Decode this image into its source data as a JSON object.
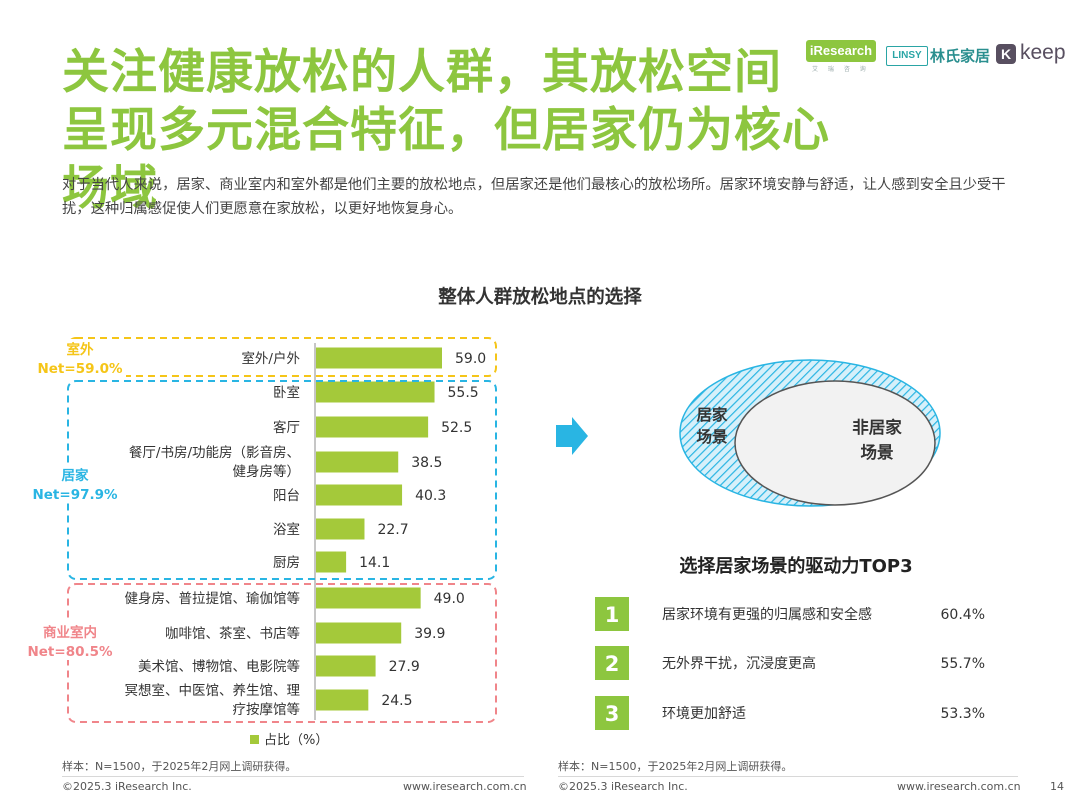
{
  "title": {
    "line1": "关注健康放松的人群，其放松空间",
    "line2": "呈现多元混合特征，但居家仍为核心场域"
  },
  "logos": {
    "iresearch": "iResearch",
    "iresearch_sub": "艾 瑞 咨 询",
    "linsy": "LINSY",
    "linshi": "林氏家居",
    "keep_k": "K",
    "keep": "keep"
  },
  "description": "对于当代人来说，居家、商业室内和室外都是他们主要的放松地点，但居家还是他们最核心的放松场所。居家环境安静与舒适，让人感到安全且少受干扰，这种归属感促使人们更愿意在家放松，以更好地恢复身心。",
  "chart_data": {
    "type": "bar",
    "orientation": "horizontal",
    "title": "整体人群放松地点的选择",
    "legend": "占比（%）",
    "categories": [
      "室外/户外",
      "卧室",
      "客厅",
      "餐厅/书房/功能房（影音房、健身房等）",
      "阳台",
      "浴室",
      "厨房",
      "健身房、普拉提馆、瑜伽馆等",
      "咖啡馆、茶室、书店等",
      "美术馆、博物馆、电影院等",
      "冥想室、中医馆、养生馆、理疗按摩馆等"
    ],
    "category_lines": [
      [
        "室外/户外"
      ],
      [
        "卧室"
      ],
      [
        "客厅"
      ],
      [
        "餐厅/书房/功能房（影音房、",
        "健身房等）"
      ],
      [
        "阳台"
      ],
      [
        "浴室"
      ],
      [
        "厨房"
      ],
      [
        "健身房、普拉提馆、瑜伽馆等"
      ],
      [
        "咖啡馆、茶室、书店等"
      ],
      [
        "美术馆、博物馆、电影院等"
      ],
      [
        "冥想室、中医馆、养生馆、理",
        "疗按摩馆等"
      ]
    ],
    "values": [
      59.0,
      55.5,
      52.5,
      38.5,
      40.3,
      22.7,
      14.1,
      49.0,
      39.9,
      27.9,
      24.5
    ],
    "value_labels": [
      "59.0",
      "55.5",
      "52.5",
      "38.5",
      "40.3",
      "22.7",
      "14.1",
      "49.0",
      "39.9",
      "27.9",
      "24.5"
    ],
    "bar_color": "#a4c93a",
    "groups": [
      {
        "name": "室外",
        "net": "Net=59.0%",
        "color": "#f5c518",
        "first": 0,
        "last": 0
      },
      {
        "name": "居家",
        "net": "Net=97.9%",
        "color": "#29b5e3",
        "first": 1,
        "last": 6
      },
      {
        "name": "商业室内",
        "net": "Net=80.5%",
        "color": "#f0858a",
        "first": 7,
        "last": 10
      }
    ]
  },
  "venn": {
    "home_label": [
      "居家",
      "场景"
    ],
    "nonhome_label": [
      "非居家",
      "场景"
    ],
    "home_color": "#29b5e3"
  },
  "top3": {
    "title": "选择居家场景的驱动力TOP3",
    "badge_color": "#8dc63f",
    "items": [
      {
        "rank": "1",
        "text": "居家环境有更强的归属感和安全感",
        "value": "60.4%"
      },
      {
        "rank": "2",
        "text": "无外界干扰，沉浸度更高",
        "value": "55.7%"
      },
      {
        "rank": "3",
        "text": "环境更加舒适",
        "value": "53.3%"
      }
    ]
  },
  "notes": {
    "left": "样本：N=1500，于2025年2月网上调研获得。",
    "right": "样本：N=1500，于2025年2月网上调研获得。"
  },
  "footer": {
    "copyright_left": "©2025.3 iResearch Inc.",
    "site_left": "www.iresearch.com.cn",
    "copyright_right": "©2025.3 iResearch Inc.",
    "site_right": "www.iresearch.com.cn",
    "page": "14"
  }
}
